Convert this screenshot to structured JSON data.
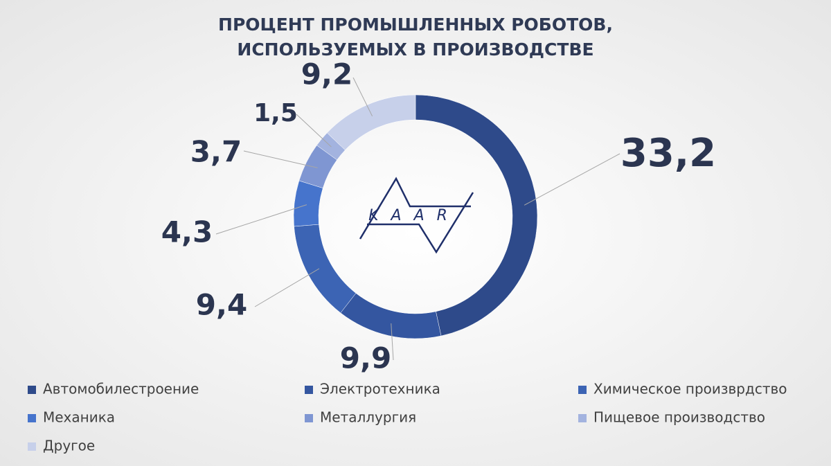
{
  "chart_data": {
    "type": "donut",
    "title": "ПРОЦЕНТ ПРОМЫШЛЕННЫХ РОБОТОВ, ИСПОЛЬЗУЕМЫХ В ПРОИЗВОДСТВЕ",
    "categories": [
      "Автомобилестроение",
      "Электротехника",
      "Химическое произврдство",
      "Механика",
      "Металлургия",
      "Пищевое производство",
      "Другое"
    ],
    "values": [
      33.2,
      9.9,
      9.4,
      4.3,
      3.7,
      1.5,
      9.2
    ],
    "value_labels": [
      "33,2",
      "9,9",
      "9,4",
      "4,3",
      "3,7",
      "1,5",
      "9,2"
    ],
    "colors": [
      "#2e4a8a",
      "#3456a0",
      "#3c64b4",
      "#4674cc",
      "#7f96d2",
      "#a3b3df",
      "#c7d0ea"
    ],
    "logo_text": "KAAR",
    "legend": "bottom"
  }
}
